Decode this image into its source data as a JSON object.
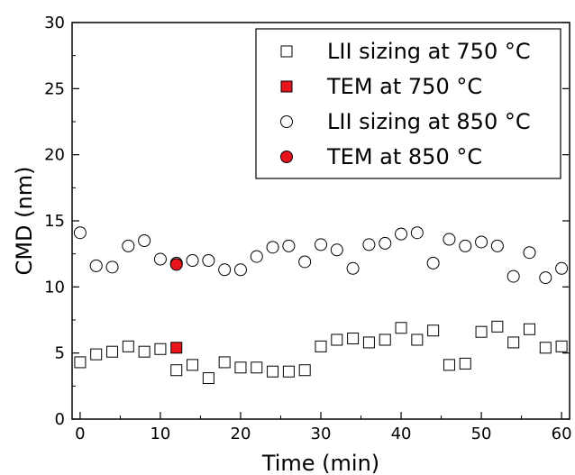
{
  "chart_data": {
    "type": "scatter",
    "xlabel": "Time (min)",
    "ylabel": "CMD (nm)",
    "xlim": [
      -1,
      61
    ],
    "ylim": [
      0,
      30
    ],
    "xticks": [
      0,
      10,
      20,
      30,
      40,
      50,
      60
    ],
    "yticks": [
      0,
      5,
      10,
      15,
      20,
      25,
      30
    ],
    "legend_position": "top-right",
    "series": [
      {
        "name": "LII sizing at 750 °C",
        "marker": "square",
        "fill": "#ffffff",
        "x": [
          0,
          2,
          4,
          6,
          8,
          10,
          12,
          14,
          16,
          18,
          20,
          22,
          24,
          26,
          28,
          30,
          32,
          34,
          36,
          38,
          40,
          42,
          44,
          46,
          48,
          50,
          52,
          54,
          56,
          58,
          60
        ],
        "y": [
          4.3,
          4.9,
          5.1,
          5.5,
          5.1,
          5.3,
          3.7,
          4.1,
          3.1,
          4.3,
          3.9,
          3.9,
          3.6,
          3.6,
          3.7,
          5.5,
          6.0,
          6.1,
          5.8,
          6.0,
          6.9,
          6.0,
          6.7,
          4.1,
          4.2,
          6.6,
          7.0,
          5.8,
          6.8,
          5.4,
          5.5
        ]
      },
      {
        "name": "TEM at 750 °C",
        "marker": "square",
        "fill": "#e8141b",
        "x": [
          12
        ],
        "y": [
          5.4
        ]
      },
      {
        "name": "LII sizing at 850 °C",
        "marker": "circle",
        "fill": "#ffffff",
        "x": [
          0,
          2,
          4,
          6,
          8,
          10,
          12,
          14,
          16,
          18,
          20,
          22,
          24,
          26,
          28,
          30,
          32,
          34,
          36,
          38,
          40,
          42,
          44,
          46,
          48,
          50,
          52,
          54,
          56,
          58,
          60
        ],
        "y": [
          14.1,
          11.6,
          11.5,
          13.1,
          13.5,
          12.1,
          11.8,
          12.0,
          12.0,
          11.3,
          11.3,
          12.3,
          13.0,
          13.1,
          11.9,
          13.2,
          12.8,
          11.4,
          13.2,
          13.3,
          14.0,
          14.1,
          11.8,
          13.6,
          13.1,
          13.4,
          13.1,
          10.8,
          12.6,
          10.7,
          11.4
        ]
      },
      {
        "name": "TEM at 850 °C",
        "marker": "circle",
        "fill": "#e8141b",
        "x": [
          12
        ],
        "y": [
          11.7
        ]
      }
    ]
  }
}
